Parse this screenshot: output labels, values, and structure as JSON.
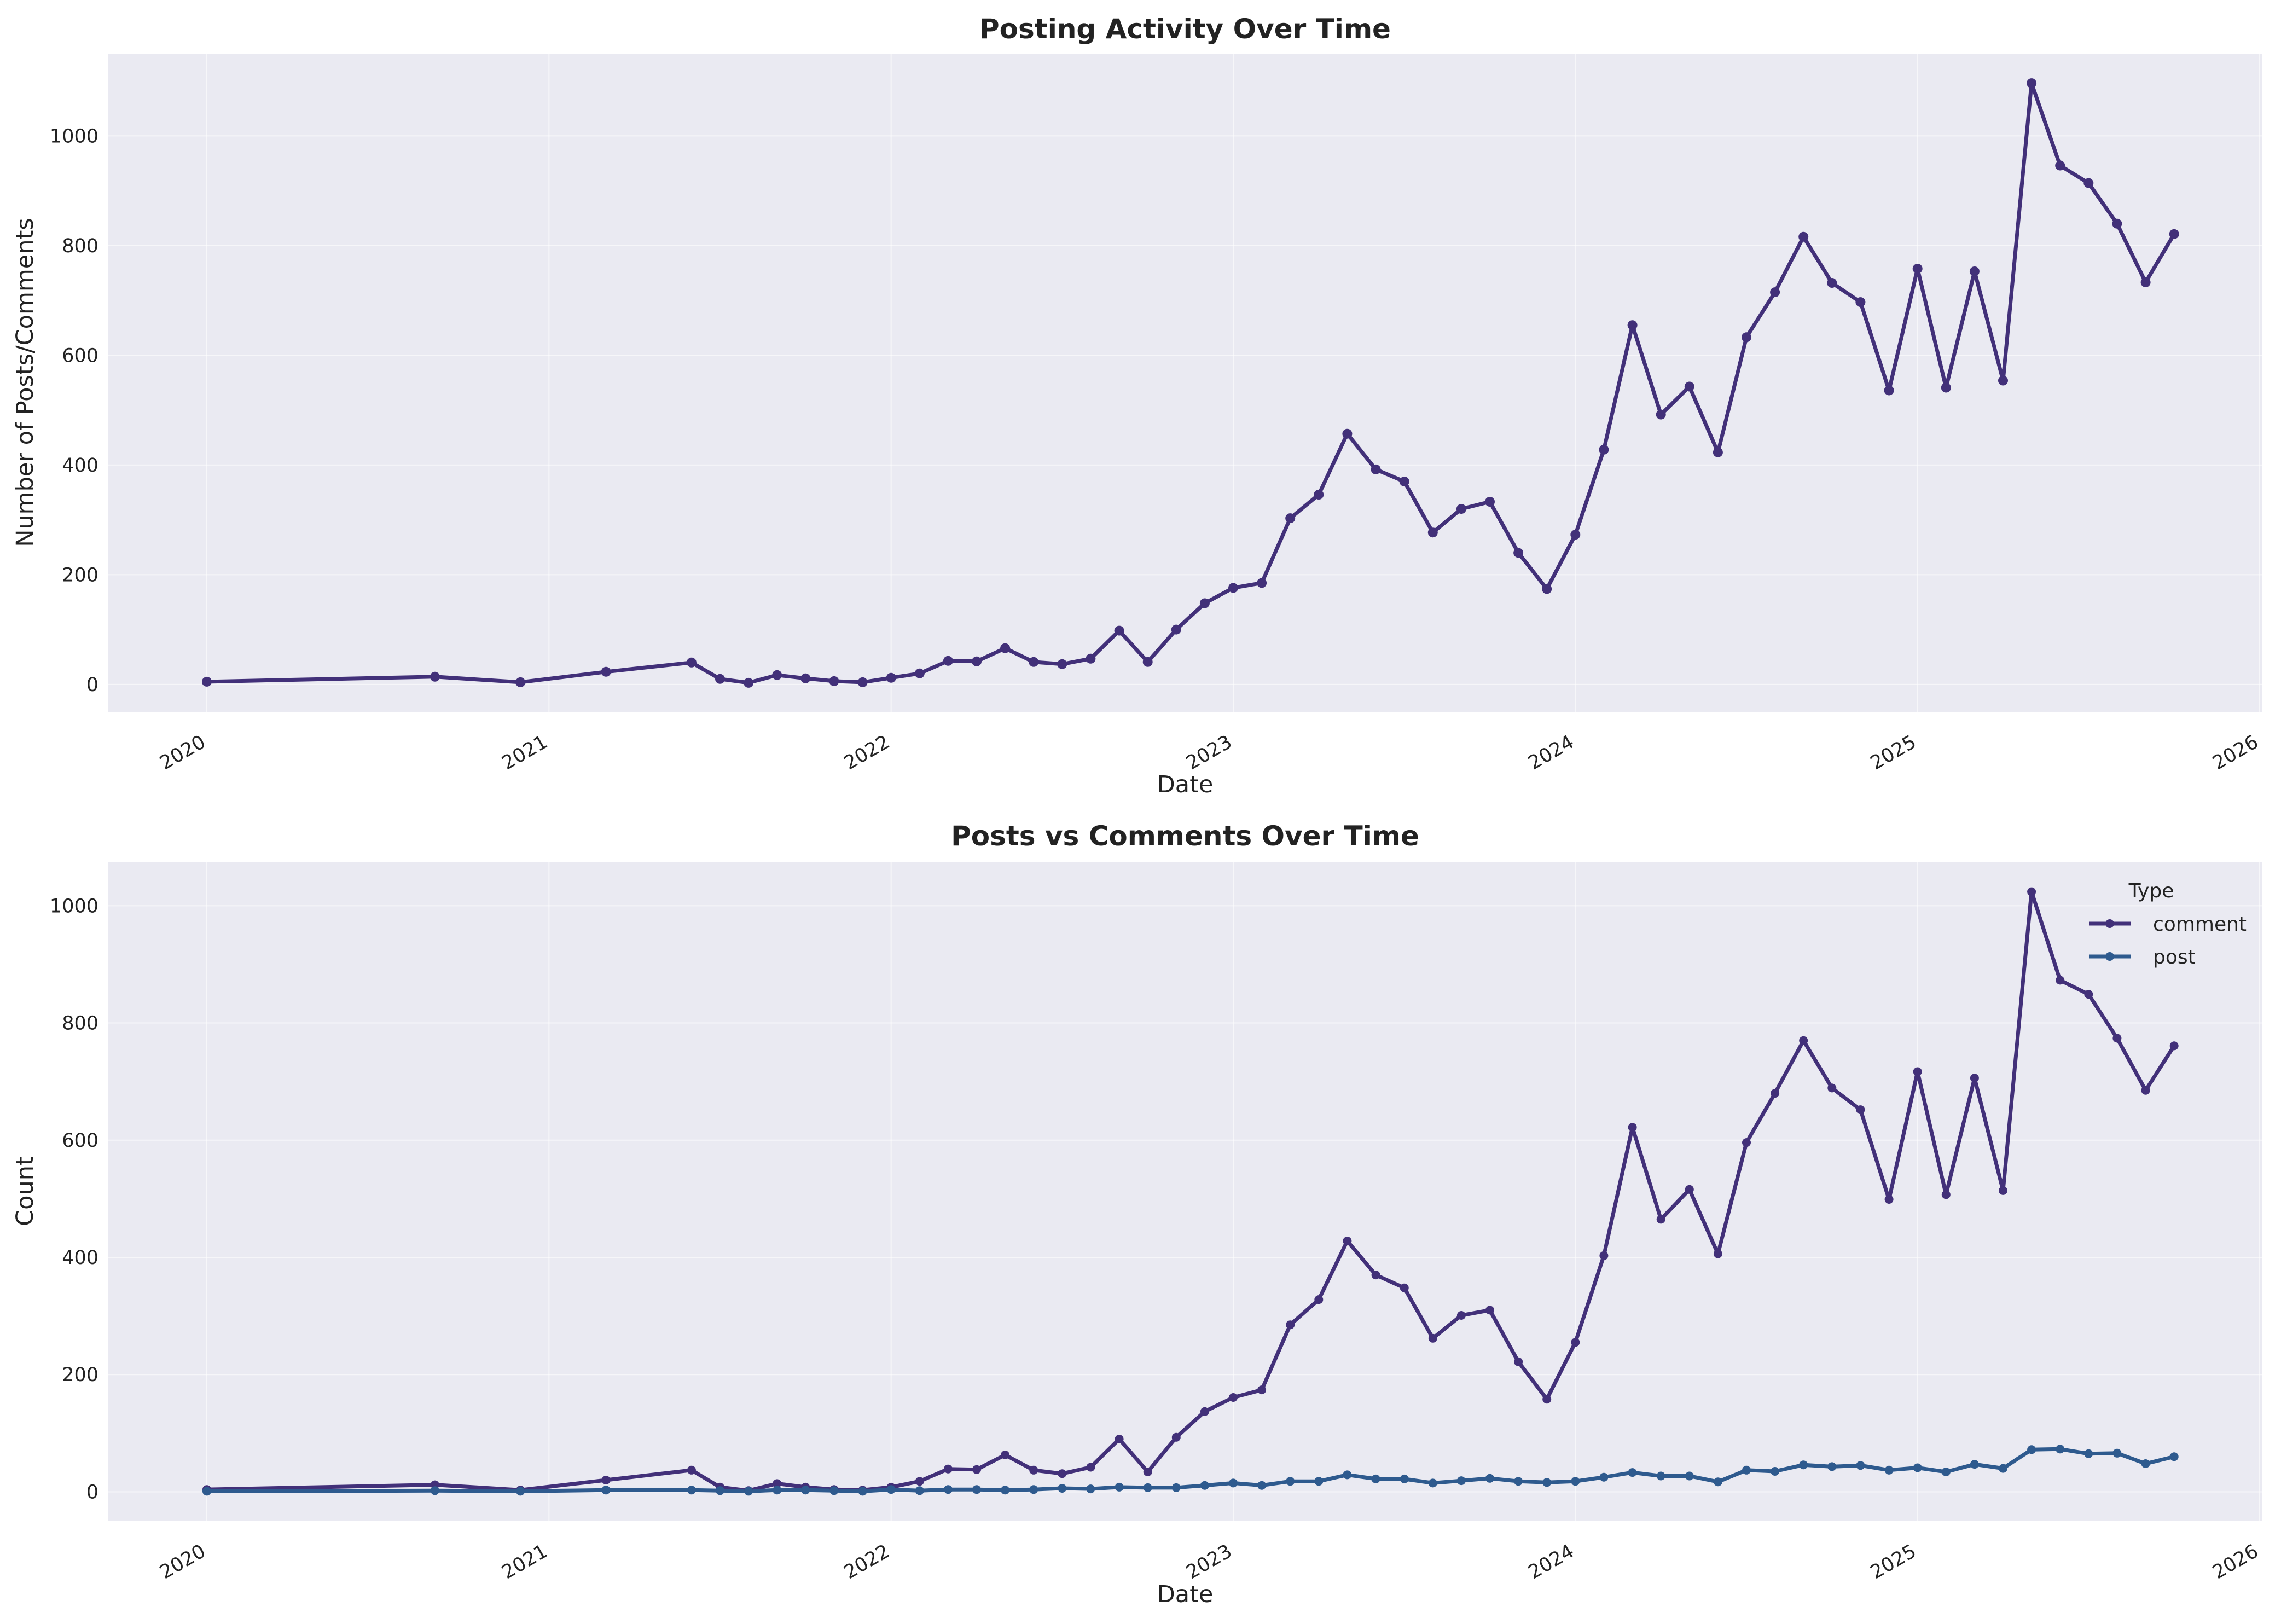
{
  "colors": {
    "comment": "#423079",
    "post": "#2e5a8e",
    "total": "#423079"
  },
  "chart_data": [
    {
      "type": "line",
      "title": "Posting Activity Over Time",
      "xlabel": "Date",
      "ylabel": "Number of Posts/Comments",
      "x_ticks": [
        "2020",
        "2021",
        "2022",
        "2023",
        "2024",
        "2025",
        "2026"
      ],
      "y_ticks": [
        "0",
        "200",
        "400",
        "600",
        "800",
        "1000"
      ],
      "ylim": [
        -50,
        1150
      ],
      "grid": true,
      "series": [
        {
          "x": [
            "2020-01",
            "2020-09",
            "2020-12",
            "2021-03",
            "2021-06",
            "2021-07",
            "2021-08",
            "2021-09",
            "2021-10",
            "2021-11",
            "2021-12",
            "2022-01",
            "2022-02",
            "2022-03",
            "2022-04",
            "2022-05",
            "2022-06",
            "2022-07",
            "2022-08",
            "2022-09",
            "2022-10",
            "2022-11",
            "2022-12",
            "2023-01",
            "2023-02",
            "2023-03",
            "2023-04",
            "2023-05",
            "2023-06",
            "2023-07",
            "2023-08",
            "2023-09",
            "2023-10",
            "2023-11",
            "2023-12",
            "2024-01",
            "2024-02",
            "2024-03",
            "2024-04",
            "2024-05",
            "2024-06",
            "2024-07",
            "2024-08",
            "2024-09",
            "2024-10",
            "2024-11",
            "2024-12",
            "2025-01",
            "2025-02",
            "2025-03",
            "2025-04",
            "2025-05",
            "2025-06",
            "2025-07",
            "2025-08",
            "2025-09",
            "2025-10"
          ],
          "values": [
            5,
            14,
            4,
            23,
            40,
            10,
            3,
            17,
            11,
            6,
            4,
            12,
            20,
            43,
            42,
            66,
            41,
            37,
            47,
            98,
            41,
            100,
            148,
            176,
            185,
            303,
            346,
            457,
            392,
            370,
            277,
            320,
            333,
            240,
            174,
            273,
            428,
            655,
            492,
            543,
            423,
            633,
            715,
            816,
            732,
            697,
            536,
            758,
            541,
            753,
            554,
            1096,
            946,
            914,
            840,
            733,
            821
          ]
        }
      ]
    },
    {
      "type": "line",
      "title": "Posts vs Comments Over Time",
      "xlabel": "Date",
      "ylabel": "Count",
      "x_ticks": [
        "2020",
        "2021",
        "2022",
        "2023",
        "2024",
        "2025",
        "2026"
      ],
      "y_ticks": [
        "0",
        "200",
        "400",
        "600",
        "800",
        "1000"
      ],
      "ylim": [
        -50,
        1075
      ],
      "grid": true,
      "legend": {
        "title": "Type",
        "placement": "top-right"
      },
      "series": [
        {
          "name": "comment",
          "x": [
            "2020-01",
            "2020-09",
            "2020-12",
            "2021-03",
            "2021-06",
            "2021-07",
            "2021-08",
            "2021-09",
            "2021-10",
            "2021-11",
            "2021-12",
            "2022-01",
            "2022-02",
            "2022-03",
            "2022-04",
            "2022-05",
            "2022-06",
            "2022-07",
            "2022-08",
            "2022-09",
            "2022-10",
            "2022-11",
            "2022-12",
            "2023-01",
            "2023-02",
            "2023-03",
            "2023-04",
            "2023-05",
            "2023-06",
            "2023-07",
            "2023-08",
            "2023-09",
            "2023-10",
            "2023-11",
            "2023-12",
            "2024-01",
            "2024-02",
            "2024-03",
            "2024-04",
            "2024-05",
            "2024-06",
            "2024-07",
            "2024-08",
            "2024-09",
            "2024-10",
            "2024-11",
            "2024-12",
            "2025-01",
            "2025-02",
            "2025-03",
            "2025-04",
            "2025-05",
            "2025-06",
            "2025-07",
            "2025-08",
            "2025-09",
            "2025-10"
          ],
          "values": [
            4,
            12,
            3,
            20,
            37,
            8,
            2,
            14,
            8,
            4,
            3,
            8,
            18,
            39,
            38,
            63,
            37,
            31,
            42,
            90,
            34,
            93,
            137,
            161,
            174,
            285,
            328,
            428,
            370,
            348,
            262,
            301,
            310,
            222,
            158,
            255,
            403,
            622,
            465,
            516,
            406,
            596,
            680,
            770,
            689,
            652,
            499,
            717,
            507,
            706,
            514,
            1024,
            873,
            849,
            774,
            685,
            761
          ]
        },
        {
          "name": "post",
          "x": [
            "2020-01",
            "2020-09",
            "2020-12",
            "2021-03",
            "2021-06",
            "2021-07",
            "2021-08",
            "2021-09",
            "2021-10",
            "2021-11",
            "2021-12",
            "2022-01",
            "2022-02",
            "2022-03",
            "2022-04",
            "2022-05",
            "2022-06",
            "2022-07",
            "2022-08",
            "2022-09",
            "2022-10",
            "2022-11",
            "2022-12",
            "2023-01",
            "2023-02",
            "2023-03",
            "2023-04",
            "2023-05",
            "2023-06",
            "2023-07",
            "2023-08",
            "2023-09",
            "2023-10",
            "2023-11",
            "2023-12",
            "2024-01",
            "2024-02",
            "2024-03",
            "2024-04",
            "2024-05",
            "2024-06",
            "2024-07",
            "2024-08",
            "2024-09",
            "2024-10",
            "2024-11",
            "2024-12",
            "2025-01",
            "2025-02",
            "2025-03",
            "2025-04",
            "2025-05",
            "2025-06",
            "2025-07",
            "2025-08",
            "2025-09",
            "2025-10"
          ],
          "values": [
            1,
            2,
            1,
            3,
            3,
            2,
            1,
            3,
            3,
            2,
            1,
            4,
            2,
            4,
            4,
            3,
            4,
            6,
            5,
            8,
            7,
            7,
            11,
            15,
            11,
            18,
            18,
            29,
            22,
            22,
            15,
            19,
            23,
            18,
            16,
            18,
            25,
            33,
            27,
            27,
            17,
            37,
            35,
            46,
            43,
            45,
            37,
            41,
            34,
            47,
            40,
            72,
            73,
            65,
            66,
            48,
            60
          ]
        }
      ]
    }
  ]
}
